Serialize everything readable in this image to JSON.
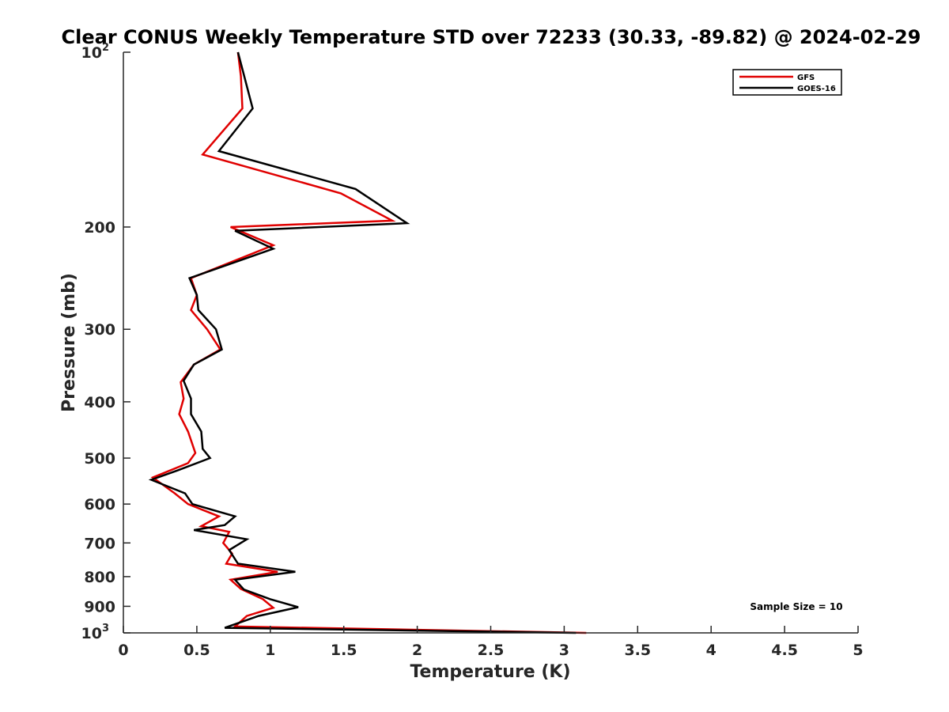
{
  "chart_data": {
    "type": "line",
    "title": "Clear CONUS Weekly Temperature STD over 72233 (30.33, -89.82) @ 2024-02-29",
    "xlabel": "Temperature (K)",
    "ylabel": "Pressure (mb)",
    "xlim": [
      0,
      5
    ],
    "ylim": [
      100,
      1000
    ],
    "y_scale": "log",
    "y_reversed": true,
    "x_ticks": [
      0,
      0.5,
      1,
      1.5,
      2,
      2.5,
      3,
      3.5,
      4,
      4.5,
      5
    ],
    "x_tick_labels": [
      "0",
      "0.5",
      "1",
      "1.5",
      "2",
      "2.5",
      "3",
      "3.5",
      "4",
      "4.5",
      "5"
    ],
    "y_ticks": [
      {
        "value": 100,
        "base": "10",
        "exp": "2"
      },
      {
        "value": 200,
        "label": "200"
      },
      {
        "value": 300,
        "label": "300"
      },
      {
        "value": 400,
        "label": "400"
      },
      {
        "value": 500,
        "label": "500"
      },
      {
        "value": 600,
        "label": "600"
      },
      {
        "value": 700,
        "label": "700"
      },
      {
        "value": 800,
        "label": "800"
      },
      {
        "value": 900,
        "label": "900"
      },
      {
        "value": 1000,
        "base": "10",
        "exp": "3"
      }
    ],
    "grid": false,
    "legend_position": "top-right",
    "annotation": "Sample Size = 10",
    "series": [
      {
        "name": "GFS",
        "color": "#e00000",
        "points": [
          [
            0.78,
            100
          ],
          [
            0.8,
            110
          ],
          [
            0.81,
            125
          ],
          [
            0.54,
            150
          ],
          [
            1.48,
            175
          ],
          [
            1.83,
            195
          ],
          [
            0.73,
            200
          ],
          [
            1.02,
            215
          ],
          [
            0.46,
            245
          ],
          [
            0.5,
            262
          ],
          [
            0.46,
            278
          ],
          [
            0.57,
            300
          ],
          [
            0.66,
            325
          ],
          [
            0.48,
            345
          ],
          [
            0.39,
            370
          ],
          [
            0.41,
            395
          ],
          [
            0.38,
            420
          ],
          [
            0.44,
            450
          ],
          [
            0.49,
            490
          ],
          [
            0.44,
            510
          ],
          [
            0.2,
            540
          ],
          [
            0.35,
            575
          ],
          [
            0.44,
            600
          ],
          [
            0.65,
            630
          ],
          [
            0.53,
            655
          ],
          [
            0.72,
            670
          ],
          [
            0.68,
            700
          ],
          [
            0.74,
            730
          ],
          [
            0.7,
            760
          ],
          [
            1.05,
            785
          ],
          [
            0.73,
            810
          ],
          [
            0.8,
            840
          ],
          [
            0.95,
            875
          ],
          [
            1.02,
            905
          ],
          [
            0.84,
            935
          ],
          [
            0.76,
            975
          ],
          [
            3.15,
            1000
          ]
        ]
      },
      {
        "name": "GOES-16",
        "color": "#000000",
        "points": [
          [
            0.78,
            100
          ],
          [
            0.88,
            125
          ],
          [
            0.65,
            148
          ],
          [
            1.58,
            172
          ],
          [
            1.93,
            197
          ],
          [
            0.76,
            203
          ],
          [
            1.02,
            218
          ],
          [
            0.45,
            245
          ],
          [
            0.5,
            262
          ],
          [
            0.51,
            278
          ],
          [
            0.63,
            300
          ],
          [
            0.67,
            325
          ],
          [
            0.48,
            345
          ],
          [
            0.41,
            368
          ],
          [
            0.46,
            395
          ],
          [
            0.46,
            420
          ],
          [
            0.53,
            450
          ],
          [
            0.54,
            482
          ],
          [
            0.59,
            500
          ],
          [
            0.37,
            525
          ],
          [
            0.19,
            545
          ],
          [
            0.42,
            575
          ],
          [
            0.47,
            600
          ],
          [
            0.76,
            630
          ],
          [
            0.69,
            652
          ],
          [
            0.48,
            665
          ],
          [
            0.84,
            690
          ],
          [
            0.72,
            720
          ],
          [
            0.78,
            760
          ],
          [
            1.17,
            785
          ],
          [
            0.76,
            810
          ],
          [
            0.82,
            842
          ],
          [
            1.0,
            875
          ],
          [
            1.19,
            903
          ],
          [
            0.92,
            935
          ],
          [
            0.69,
            980
          ],
          [
            3.08,
            1000
          ]
        ]
      }
    ]
  }
}
